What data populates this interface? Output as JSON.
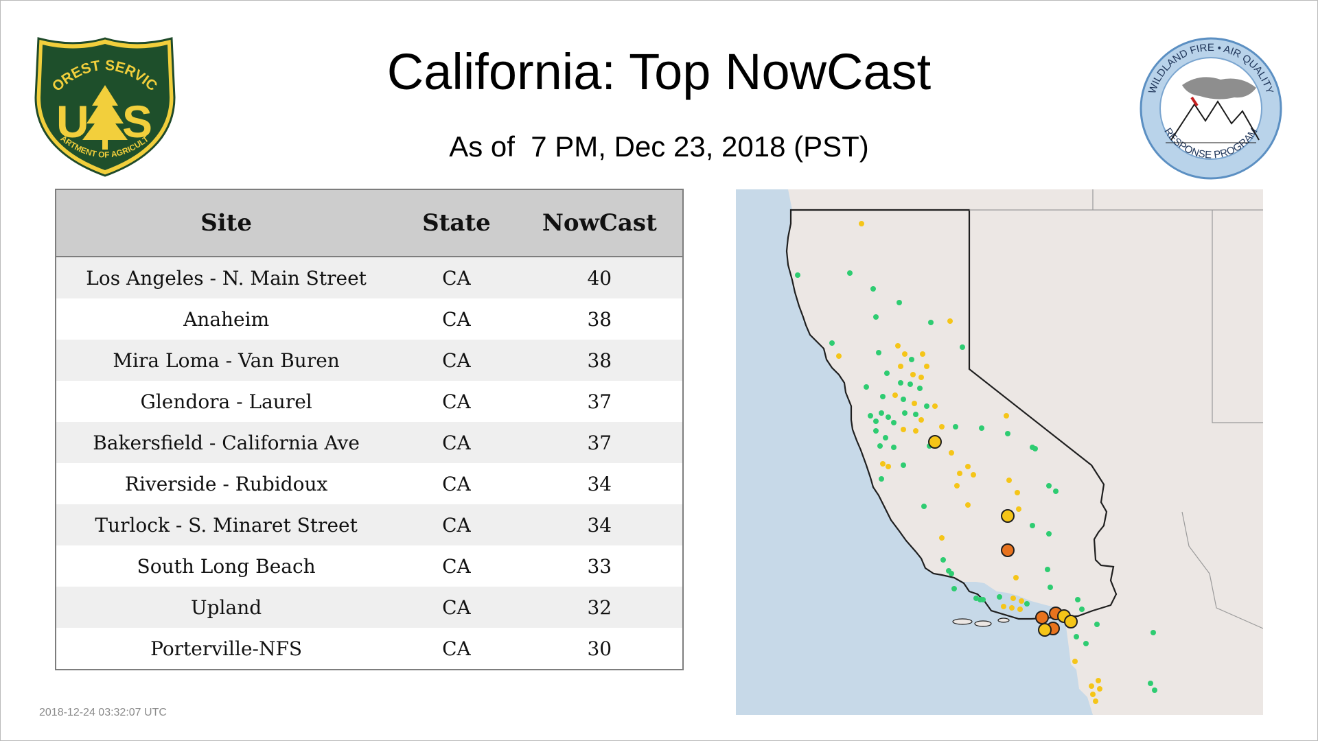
{
  "page": {
    "title": "California: Top NowCast",
    "subtitle": "As of  7 PM, Dec 23, 2018 (PST)",
    "timestamp": "2018-12-24 03:32:07 UTC"
  },
  "logos": {
    "usfs": {
      "top_text": "FOREST SERVICE",
      "letters": "U S",
      "bottom_text": "DEPARTMENT OF AGRICULTURE"
    },
    "wfaqrp": {
      "top_text": "WILDLAND FIRE • AIR QUALITY",
      "bottom_text": "RESPONSE PROGRAM"
    }
  },
  "table": {
    "headers": [
      "Site",
      "State",
      "NowCast"
    ],
    "rows": [
      [
        "Los Angeles - N. Main Street",
        "CA",
        "40"
      ],
      [
        "Anaheim",
        "CA",
        "38"
      ],
      [
        "Mira Loma - Van Buren",
        "CA",
        "38"
      ],
      [
        "Glendora - Laurel",
        "CA",
        "37"
      ],
      [
        "Bakersfield - California Ave",
        "CA",
        "37"
      ],
      [
        "Riverside - Rubidoux",
        "CA",
        "34"
      ],
      [
        "Turlock - S. Minaret Street",
        "CA",
        "34"
      ],
      [
        "South Long Beach",
        "CA",
        "33"
      ],
      [
        "Upland",
        "CA",
        "32"
      ],
      [
        "Porterville-NFS",
        "CA",
        "30"
      ]
    ]
  },
  "map": {
    "colors": {
      "good": "#2ecc71",
      "moderate": "#f5c518",
      "usg": "#e8731e",
      "water": "#c7d9e8",
      "land": "#ece7e4"
    }
  }
}
